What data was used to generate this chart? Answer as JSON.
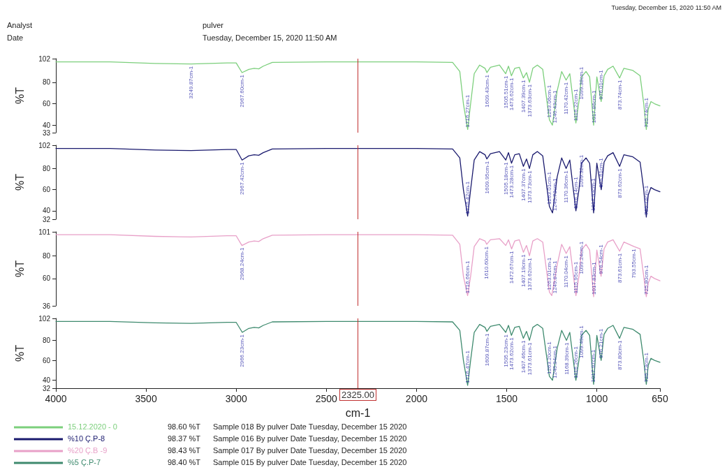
{
  "chart_data": [
    {
      "type": "line",
      "ylabel": "%T",
      "legend": "bottom",
      "tick_labels": "y",
      "marker": "none",
      "xlim": [
        4000,
        650
      ],
      "xticks": [
        4000,
        3500,
        3000,
        2500,
        2000,
        1500,
        1000,
        650
      ],
      "ylim": [
        33,
        102
      ],
      "yticks": [
        33,
        40,
        60,
        80,
        102
      ],
      "series": [
        {
          "name": "15.12.2020 -   0",
          "color": "#7ccf7c",
          "x": [
            4000,
            3700,
            3450,
            3249.87,
            3050,
            3000,
            2967.6,
            2930,
            2900,
            2875,
            2850,
            2800,
            2500,
            2000,
            1800,
            1760,
            1740,
            1716.27,
            1700,
            1680,
            1650,
            1620,
            1609.43,
            1590,
            1540,
            1505.51,
            1490,
            1473.62,
            1455,
            1430,
            1407.39,
            1390,
            1373.63,
            1355,
            1330,
            1300,
            1263.06,
            1246.43,
            1220,
            1195,
            1170.42,
            1150,
            1116.22,
            1099.38,
            1085,
            1060,
            1040,
            1017.86,
            1000,
            976.01,
            960,
            940,
            910,
            873.74,
            850,
            800,
            760,
            740,
            725.74,
            715,
            700,
            680,
            650
          ],
          "values": [
            99,
            99,
            97.5,
            97,
            98,
            98,
            89,
            92,
            93,
            92.5,
            95,
            98.5,
            99,
            99,
            98.5,
            90,
            60,
            36,
            60,
            88,
            96,
            93,
            89,
            94,
            96,
            88,
            95,
            86,
            93,
            94,
            84,
            89,
            80,
            93,
            96,
            92,
            45,
            40,
            72,
            90,
            82,
            88,
            42,
            62,
            85,
            90,
            85,
            40,
            85,
            62,
            86,
            92,
            95,
            84,
            93,
            91,
            86,
            60,
            36,
            55,
            62,
            60,
            58
          ]
        }
      ],
      "ref_lines": [
        {
          "axis": "x",
          "value": 2325,
          "color": "#c03030"
        }
      ],
      "annotations": [
        "Tuesday, December 15, 2020 11:50 AM",
        "Analyst",
        "Date",
        "pulver",
        "Tuesday, December 15, 2020 11:50 AM",
        "98.60 %T",
        "Sample 018 By pulver Date Tuesday, December 15 2020",
        {
          "text": "3249.87cm-1",
          "x": 3249.87,
          "y": 97
        },
        {
          "text": "2967.60cm-1",
          "x": 2967.6,
          "y": 89
        },
        {
          "text": "1716.27cm-1",
          "x": 1716.27,
          "y": 36
        },
        {
          "text": "1609.43cm-1",
          "x": 1609.43,
          "y": 89
        },
        {
          "text": "1505.51cm-1",
          "x": 1505.51,
          "y": 88
        },
        {
          "text": "1473.62cm-1",
          "x": 1473.62,
          "y": 86
        },
        {
          "text": "1407.39cm-1",
          "x": 1407.39,
          "y": 84
        },
        {
          "text": "1373.63cm-1",
          "x": 1373.63,
          "y": 80
        },
        {
          "text": "1263.06cm-1",
          "x": 1263.06,
          "y": 45
        },
        {
          "text": "1246.43cm-1",
          "x": 1246.43,
          "y": 40
        },
        {
          "text": "1170.42cm-1",
          "x": 1170.42,
          "y": 82
        },
        {
          "text": "1116.22cm-1",
          "x": 1116.22,
          "y": 42
        },
        {
          "text": "1099.38cm-1",
          "x": 1099.38,
          "y": 62
        },
        {
          "text": "1017.86cm-1",
          "x": 1017.86,
          "y": 40
        },
        {
          "text": "976.01cm-1",
          "x": 976.01,
          "y": 62
        },
        {
          "text": "873.74cm-1",
          "x": 873.74,
          "y": 84
        },
        {
          "text": "725.74cm-1",
          "x": 725.74,
          "y": 36
        }
      ]
    },
    {
      "type": "line",
      "ylabel": "%T",
      "legend": "bottom",
      "tick_labels": "y",
      "marker": "none",
      "xlim": [
        4000,
        650
      ],
      "xticks": [
        4000,
        3500,
        3000,
        2500,
        2000,
        1500,
        1000,
        650
      ],
      "ylim": [
        32,
        102
      ],
      "yticks": [
        32,
        40,
        60,
        80,
        102
      ],
      "series": [
        {
          "name": "%10 Ç.P-8",
          "color": "#1a1a6e",
          "x": [
            4000,
            3700,
            3450,
            3250,
            3050,
            3000,
            2967.42,
            2930,
            2900,
            2875,
            2850,
            2800,
            2500,
            2000,
            1800,
            1760,
            1740,
            1716.42,
            1700,
            1680,
            1650,
            1620,
            1609.95,
            1590,
            1540,
            1505.18,
            1490,
            1473.28,
            1455,
            1430,
            1407.37,
            1390,
            1373.73,
            1355,
            1330,
            1300,
            1263.01,
            1245.73,
            1220,
            1195,
            1170.36,
            1150,
            1116.14,
            1099.32,
            1085,
            1060,
            1040,
            1017.93,
            1000,
            975.61,
            960,
            940,
            910,
            873.62,
            850,
            800,
            760,
            740,
            725.74,
            715,
            700,
            680,
            650
          ],
          "values": [
            99,
            99,
            97.5,
            97,
            98,
            98,
            88,
            92,
            93,
            92.5,
            95,
            98.5,
            99,
            99,
            98.5,
            90,
            60,
            35,
            60,
            88,
            96,
            93,
            89,
            94,
            96,
            88,
            95,
            85,
            93,
            94,
            82,
            89,
            80,
            93,
            96,
            92,
            44,
            38,
            72,
            90,
            80,
            88,
            40,
            60,
            85,
            90,
            85,
            38,
            85,
            60,
            86,
            92,
            95,
            82,
            93,
            91,
            86,
            60,
            34,
            55,
            62,
            60,
            58
          ]
        }
      ],
      "ref_lines": [
        {
          "axis": "x",
          "value": 2325,
          "color": "#c03030"
        }
      ],
      "annotations": [
        "98.37 %T",
        "Sample 016 By pulver Date Tuesday, December 15 2020",
        {
          "text": "2967.42cm-1",
          "x": 2967.42,
          "y": 88
        },
        {
          "text": "1716.42cm-1",
          "x": 1716.42,
          "y": 35
        },
        {
          "text": "1609.95cm-1",
          "x": 1609.95,
          "y": 89
        },
        {
          "text": "1505.18cm-1",
          "x": 1505.18,
          "y": 88
        },
        {
          "text": "1473.28cm-1",
          "x": 1473.28,
          "y": 85
        },
        {
          "text": "1407.37cm-1",
          "x": 1407.37,
          "y": 82
        },
        {
          "text": "1373.73cm-1",
          "x": 1373.73,
          "y": 80
        },
        {
          "text": "1263.01cm-1",
          "x": 1263.01,
          "y": 44
        },
        {
          "text": "1245.73cm-1",
          "x": 1245.73,
          "y": 38
        },
        {
          "text": "1170.36cm-1",
          "x": 1170.36,
          "y": 80
        },
        {
          "text": "1116.14cm-1",
          "x": 1116.14,
          "y": 40
        },
        {
          "text": "1099.32cm-1",
          "x": 1099.32,
          "y": 60
        },
        {
          "text": "1017.93cm-1",
          "x": 1017.93,
          "y": 38
        },
        {
          "text": "975.61cm-1",
          "x": 975.61,
          "y": 60
        },
        {
          "text": "873.62cm-1",
          "x": 873.62,
          "y": 82
        },
        {
          "text": "725.74cm-1",
          "x": 725.74,
          "y": 34
        }
      ]
    },
    {
      "type": "line",
      "ylabel": "%T",
      "legend": "bottom",
      "tick_labels": "y",
      "marker": "none",
      "xlim": [
        4000,
        650
      ],
      "xticks": [
        4000,
        3500,
        3000,
        2500,
        2000,
        1500,
        1000,
        650
      ],
      "ylim": [
        36,
        101
      ],
      "yticks": [
        36,
        60,
        80,
        101
      ],
      "series": [
        {
          "name": "%20 Ç.B -9",
          "color": "#e8a0c8",
          "x": [
            4000,
            3700,
            3450,
            3250,
            3050,
            3000,
            2968.24,
            2930,
            2900,
            2875,
            2850,
            2800,
            2500,
            2000,
            1800,
            1760,
            1740,
            1716.66,
            1700,
            1680,
            1650,
            1620,
            1610.6,
            1590,
            1540,
            1505,
            1490,
            1472.67,
            1455,
            1430,
            1407.19,
            1390,
            1373.62,
            1355,
            1330,
            1300,
            1263.01,
            1249.87,
            1220,
            1195,
            1170.04,
            1150,
            1115.95,
            1099.24,
            1085,
            1060,
            1040,
            1017.83,
            1000,
            976.54,
            960,
            940,
            910,
            873.61,
            850,
            793.55,
            760,
            740,
            725.8,
            715,
            700,
            680,
            650
          ],
          "values": [
            98.5,
            98.5,
            97,
            96.5,
            97.5,
            97.5,
            89,
            92,
            93,
            92.5,
            95,
            98,
            98.5,
            98.5,
            98,
            90,
            62,
            45,
            62,
            88,
            95,
            93,
            90,
            94,
            95,
            89,
            94,
            86,
            93,
            94,
            83,
            89,
            80,
            93,
            95,
            92,
            48,
            45,
            72,
            90,
            82,
            88,
            45,
            62,
            85,
            90,
            85,
            44,
            85,
            62,
            86,
            92,
            94,
            84,
            92,
            88,
            86,
            62,
            44,
            56,
            62,
            60,
            58
          ]
        }
      ],
      "ref_lines": [
        {
          "axis": "x",
          "value": 2325,
          "color": "#c03030"
        }
      ],
      "annotations": [
        "98.43 %T",
        "Sample 017 By pulver Date Tuesday, December 15 2020",
        {
          "text": "2968.24cm-1",
          "x": 2968.24,
          "y": 89
        },
        {
          "text": "1716.66cm-1",
          "x": 1716.66,
          "y": 45
        },
        {
          "text": "1610.60cm-1",
          "x": 1610.6,
          "y": 90
        },
        {
          "text": "1472.67cm-1",
          "x": 1472.67,
          "y": 86
        },
        {
          "text": "1407.19cm-1",
          "x": 1407.19,
          "y": 83
        },
        {
          "text": "1373.62cm-1",
          "x": 1373.62,
          "y": 80
        },
        {
          "text": "1263.01cm-1",
          "x": 1263.01,
          "y": 48
        },
        {
          "text": "1249.87cm-1",
          "x": 1249.87,
          "y": 45
        },
        {
          "text": "1170.04cm-1",
          "x": 1170.04,
          "y": 82
        },
        {
          "text": "1115.95cm-1",
          "x": 1115.95,
          "y": 45
        },
        {
          "text": "1099.24cm-1",
          "x": 1099.24,
          "y": 62
        },
        {
          "text": "1017.83cm-1",
          "x": 1017.83,
          "y": 44
        },
        {
          "text": "976.54cm-1",
          "x": 976.54,
          "y": 62
        },
        {
          "text": "873.61cm-1",
          "x": 873.61,
          "y": 84
        },
        {
          "text": "793.55cm-1",
          "x": 793.55,
          "y": 88
        },
        {
          "text": "725.80cm-1",
          "x": 725.8,
          "y": 44
        }
      ]
    },
    {
      "type": "line",
      "xlabel": "cm-1",
      "ylabel": "%T",
      "legend": "bottom",
      "marker": "none",
      "xlim": [
        4000,
        650
      ],
      "xticks": [
        4000,
        3500,
        3000,
        2500,
        2000,
        1500,
        1000,
        650
      ],
      "ylim": [
        32,
        102
      ],
      "yticks": [
        32,
        40,
        60,
        80,
        102
      ],
      "series": [
        {
          "name": "%5 Ç.P-7",
          "color": "#3e8a6e",
          "x": [
            4000,
            3700,
            3450,
            3250,
            3050,
            3000,
            2966.23,
            2930,
            2900,
            2875,
            2850,
            2800,
            2500,
            2000,
            1800,
            1760,
            1740,
            1716.47,
            1700,
            1680,
            1650,
            1620,
            1609.87,
            1590,
            1540,
            1505.23,
            1490,
            1473.62,
            1455,
            1430,
            1407.46,
            1390,
            1373.61,
            1355,
            1330,
            1300,
            1263.2,
            1245.94,
            1220,
            1195,
            1168.39,
            1150,
            1116.26,
            1099.49,
            1085,
            1060,
            1040,
            1017.97,
            1000,
            976.21,
            960,
            940,
            910,
            873.8,
            850,
            800,
            760,
            740,
            725.73,
            715,
            700,
            680,
            650
          ],
          "values": [
            99,
            99,
            97.5,
            97,
            98,
            98,
            88,
            92,
            93,
            92.5,
            95,
            98.5,
            99,
            99,
            98.5,
            90,
            60,
            35,
            60,
            88,
            96,
            93,
            89,
            94,
            96,
            88,
            95,
            85,
            93,
            94,
            82,
            89,
            80,
            93,
            96,
            92,
            44,
            40,
            72,
            90,
            80,
            88,
            40,
            60,
            85,
            90,
            85,
            36,
            85,
            60,
            86,
            92,
            95,
            82,
            93,
            91,
            86,
            60,
            36,
            55,
            62,
            60,
            58
          ]
        }
      ],
      "ref_lines": [
        {
          "axis": "x",
          "value": 2325,
          "label": "2325.00",
          "color": "#c03030"
        }
      ],
      "annotations": [
        "98.40 %T",
        "Sample 015 By pulver Date Tuesday, December 15 2020",
        {
          "text": "2966.23cm-1",
          "x": 2966.23,
          "y": 88
        },
        {
          "text": "1716.47cm-1",
          "x": 1716.47,
          "y": 35
        },
        {
          "text": "1609.87cm-1",
          "x": 1609.87,
          "y": 89
        },
        {
          "text": "1505.23cm-1",
          "x": 1505.23,
          "y": 88
        },
        {
          "text": "1473.62cm-1",
          "x": 1473.62,
          "y": 85
        },
        {
          "text": "1407.46cm-1",
          "x": 1407.46,
          "y": 82
        },
        {
          "text": "1373.61cm-1",
          "x": 1373.61,
          "y": 80
        },
        {
          "text": "1263.20cm-1",
          "x": 1263.2,
          "y": 44
        },
        {
          "text": "1245.94cm-1",
          "x": 1245.94,
          "y": 40
        },
        {
          "text": "1168.39cm-1",
          "x": 1168.39,
          "y": 80
        },
        {
          "text": "1116.26cm-1",
          "x": 1116.26,
          "y": 40
        },
        {
          "text": "1099.49cm-1",
          "x": 1099.49,
          "y": 60
        },
        {
          "text": "1017.97cm-1",
          "x": 1017.97,
          "y": 36
        },
        {
          "text": "976.21cm-1",
          "x": 976.21,
          "y": 60
        },
        {
          "text": "873.80cm-1",
          "x": 873.8,
          "y": 82
        },
        {
          "text": "725.73cm-1",
          "x": 725.73,
          "y": 36
        }
      ]
    }
  ]
}
